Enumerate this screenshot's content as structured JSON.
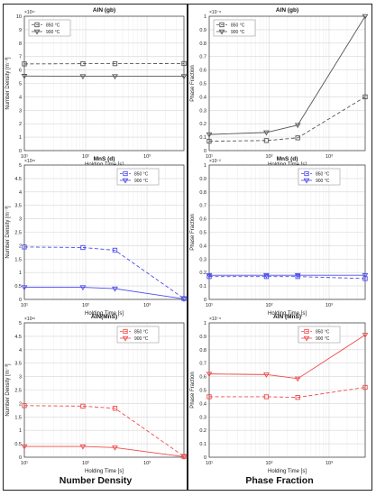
{
  "columns": {
    "left": "Number Density",
    "right": "Phase Fraction"
  },
  "chart_data": [
    {
      "type": "line",
      "title": "AlN (gb)",
      "xlabel": "Holding Time [s]",
      "ylabel": "Number Density [m⁻³]",
      "xscale": "log",
      "xlim": [
        10,
        4000
      ],
      "xticks": [
        10,
        100,
        1000
      ],
      "xticklabels": [
        "10¹",
        "10²",
        "10³"
      ],
      "ylim": [
        0,
        10
      ],
      "yticks": [
        0,
        1,
        2,
        3,
        4,
        5,
        6,
        7,
        8,
        9,
        10
      ],
      "yticklabels": [
        "0",
        "1",
        "2",
        "3",
        "4",
        "5",
        "6",
        "7",
        "8",
        "9",
        "10"
      ],
      "exponent": "×10¹⁷",
      "grid": true,
      "legend": "top-left",
      "series": [
        {
          "name": "850 °C",
          "color": "#555555",
          "dash": true,
          "marker": "square",
          "x": [
            10,
            90,
            300,
            4000
          ],
          "y": [
            6.45,
            6.47,
            6.47,
            6.48
          ]
        },
        {
          "name": "900 °C",
          "color": "#555555",
          "dash": false,
          "marker": "triangle",
          "x": [
            10,
            90,
            300,
            4000
          ],
          "y": [
            5.55,
            5.53,
            5.53,
            5.53
          ]
        }
      ]
    },
    {
      "type": "line",
      "title": "AlN (gb)",
      "xlabel": "Holding Time [s]",
      "ylabel": "Phase Fraction",
      "xscale": "log",
      "xlim": [
        10,
        4000
      ],
      "xticks": [
        10,
        100,
        1000
      ],
      "xticklabels": [
        "10¹",
        "10²",
        "10³"
      ],
      "ylim": [
        0,
        1
      ],
      "yticks": [
        0,
        0.1,
        0.2,
        0.3,
        0.4,
        0.5,
        0.6,
        0.7,
        0.8,
        0.9,
        1
      ],
      "yticklabels": [
        "0",
        "0.1",
        "0.2",
        "0.3",
        "0.4",
        "0.5",
        "0.6",
        "0.7",
        "0.8",
        "0.9",
        "1"
      ],
      "exponent": "×10⁻⁸",
      "grid": true,
      "legend": "top-left",
      "series": [
        {
          "name": "850 °C",
          "color": "#555555",
          "dash": true,
          "marker": "square",
          "x": [
            10,
            90,
            300,
            4000
          ],
          "y": [
            0.07,
            0.075,
            0.095,
            0.4
          ]
        },
        {
          "name": "900 °C",
          "color": "#555555",
          "dash": false,
          "marker": "triangle",
          "x": [
            10,
            90,
            300,
            4000
          ],
          "y": [
            0.12,
            0.135,
            0.19,
            1.0
          ]
        }
      ]
    },
    {
      "type": "line",
      "title": "MnS (d)",
      "xlabel": "Holding Time [s]",
      "ylabel": "Number Density [m⁻³]",
      "xscale": "log",
      "xlim": [
        10,
        4000
      ],
      "xticks": [
        10,
        100,
        1000
      ],
      "xticklabels": [
        "10¹",
        "10²",
        "10³"
      ],
      "ylim": [
        0,
        5
      ],
      "yticks": [
        0,
        0.5,
        1,
        1.5,
        2,
        2.5,
        3,
        3.5,
        4,
        4.5,
        5
      ],
      "yticklabels": [
        "0",
        "0.5",
        "1",
        "1.5",
        "2",
        "2.5",
        "3",
        "3.5",
        "4",
        "4.5",
        "5"
      ],
      "exponent": "×10¹⁶",
      "grid": true,
      "legend": "top-right",
      "series": [
        {
          "name": "850 °C",
          "color": "#4b4bf0",
          "dash": true,
          "marker": "square",
          "x": [
            10,
            90,
            300,
            4000
          ],
          "y": [
            1.95,
            1.93,
            1.83,
            0.03
          ]
        },
        {
          "name": "900 °C",
          "color": "#4b4bf0",
          "dash": false,
          "marker": "triangle",
          "x": [
            10,
            90,
            300,
            4000
          ],
          "y": [
            0.45,
            0.45,
            0.4,
            0.02
          ]
        }
      ]
    },
    {
      "type": "line",
      "title": "MnS (d)",
      "xlabel": "Holding Time [s]",
      "ylabel": "Phase Fraction",
      "xscale": "log",
      "xlim": [
        10,
        4000
      ],
      "xticks": [
        10,
        100,
        1000
      ],
      "xticklabels": [
        "10¹",
        "10²",
        "10³"
      ],
      "ylim": [
        0,
        1
      ],
      "yticks": [
        0,
        0.1,
        0.2,
        0.3,
        0.4,
        0.5,
        0.6,
        0.7,
        0.8,
        0.9,
        1
      ],
      "yticklabels": [
        "0",
        "0.1",
        "0.2",
        "0.3",
        "0.4",
        "0.5",
        "0.6",
        "0.7",
        "0.8",
        "0.9",
        "1"
      ],
      "exponent": "×10⁻²",
      "grid": true,
      "legend": "top-right",
      "series": [
        {
          "name": "850 °C",
          "color": "#4b4bf0",
          "dash": true,
          "marker": "square",
          "x": [
            10,
            90,
            300,
            4000
          ],
          "y": [
            0.17,
            0.17,
            0.17,
            0.155
          ]
        },
        {
          "name": "900 °C",
          "color": "#4b4bf0",
          "dash": false,
          "marker": "triangle",
          "x": [
            10,
            90,
            300,
            4000
          ],
          "y": [
            0.18,
            0.18,
            0.18,
            0.18
          ]
        }
      ]
    },
    {
      "type": "line",
      "title": "AlN(MnS)",
      "xlabel": "Holding Time [s]",
      "ylabel": "Number Density [m⁻³]",
      "xscale": "log",
      "xlim": [
        10,
        4000
      ],
      "xticks": [
        10,
        100,
        1000
      ],
      "xticklabels": [
        "10¹",
        "10²",
        "10³"
      ],
      "ylim": [
        0,
        5
      ],
      "yticks": [
        0,
        0.5,
        1,
        1.5,
        2,
        2.5,
        3,
        3.5,
        4,
        4.5,
        5
      ],
      "yticklabels": [
        "0",
        "0.5",
        "1",
        "1.5",
        "2",
        "2.5",
        "3",
        "3.5",
        "4",
        "4.5",
        "5"
      ],
      "exponent": "×10¹⁶",
      "grid": true,
      "legend": "top-right",
      "series": [
        {
          "name": "850 °C",
          "color": "#f04a4a",
          "dash": true,
          "marker": "square",
          "x": [
            10,
            90,
            300,
            4000
          ],
          "y": [
            1.92,
            1.9,
            1.82,
            0.03
          ]
        },
        {
          "name": "900 °C",
          "color": "#f04a4a",
          "dash": false,
          "marker": "triangle",
          "x": [
            10,
            90,
            300,
            4000
          ],
          "y": [
            0.4,
            0.4,
            0.36,
            0.02
          ]
        }
      ]
    },
    {
      "type": "line",
      "title": "AlN (MnS)",
      "xlabel": "Holding Time [s]",
      "ylabel": "Phase Fraction",
      "xscale": "log",
      "xlim": [
        10,
        4000
      ],
      "xticks": [
        10,
        100,
        1000
      ],
      "xticklabels": [
        "10¹",
        "10²",
        "10³"
      ],
      "ylim": [
        0,
        1
      ],
      "yticks": [
        0,
        0.1,
        0.2,
        0.3,
        0.4,
        0.5,
        0.6,
        0.7,
        0.8,
        0.9,
        1
      ],
      "yticklabels": [
        "0",
        "0.1",
        "0.2",
        "0.3",
        "0.4",
        "0.5",
        "0.6",
        "0.7",
        "0.8",
        "0.9",
        "1"
      ],
      "exponent": "×10⁻⁸",
      "grid": true,
      "legend": "top-right",
      "series": [
        {
          "name": "850 °C",
          "color": "#f04a4a",
          "dash": true,
          "marker": "square",
          "x": [
            10,
            90,
            300,
            4000
          ],
          "y": [
            0.45,
            0.45,
            0.445,
            0.52
          ]
        },
        {
          "name": "900 °C",
          "color": "#f04a4a",
          "dash": false,
          "marker": "triangle",
          "x": [
            10,
            90,
            300,
            4000
          ],
          "y": [
            0.62,
            0.615,
            0.585,
            0.91
          ]
        }
      ]
    }
  ]
}
